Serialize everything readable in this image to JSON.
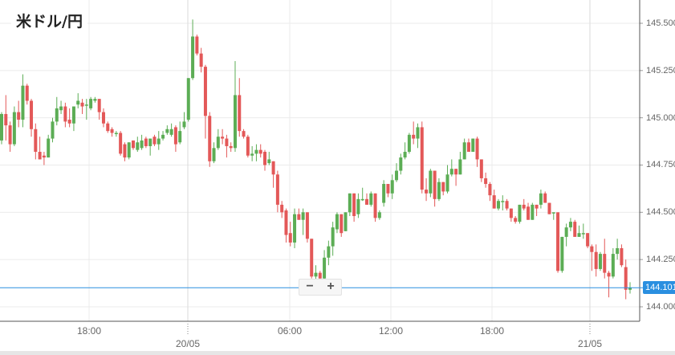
{
  "title": "米ドル/円",
  "colors": {
    "up": "#5cad55",
    "down": "#e35858",
    "price_line": "#2a8fe0",
    "grid": "#ebebeb"
  },
  "zoom": {
    "minus": "−",
    "plus": "+"
  },
  "chart_data": {
    "type": "candlestick",
    "title": "米ドル/円",
    "ylim": [
      143.92,
      145.62
    ],
    "grid": true,
    "y_ticks": [
      "145.500",
      "145.250",
      "145.000",
      "144.750",
      "144.500",
      "144.250",
      "144.000"
    ],
    "x_ticks": [
      {
        "label": "18:00",
        "kind": "time"
      },
      {
        "label": "20/05",
        "kind": "date"
      },
      {
        "label": "06:00",
        "kind": "time"
      },
      {
        "label": "12:00",
        "kind": "time"
      },
      {
        "label": "18:00",
        "kind": "time"
      },
      {
        "label": "21/05",
        "kind": "date"
      }
    ],
    "current_price": "144.101",
    "candles": [
      [
        144.88,
        145.03,
        144.86,
        145.02
      ],
      [
        145.02,
        145.12,
        144.88,
        144.96
      ],
      [
        144.96,
        144.98,
        144.82,
        144.86
      ],
      [
        144.86,
        145.06,
        144.85,
        145.03
      ],
      [
        145.03,
        145.09,
        144.95,
        144.99
      ],
      [
        144.99,
        145.23,
        144.95,
        145.17
      ],
      [
        145.17,
        145.18,
        145.07,
        145.09
      ],
      [
        145.09,
        145.1,
        144.9,
        144.94
      ],
      [
        144.94,
        144.97,
        144.78,
        144.82
      ],
      [
        144.82,
        144.9,
        144.78,
        144.78
      ],
      [
        144.8,
        144.82,
        144.75,
        144.79
      ],
      [
        144.79,
        144.91,
        144.79,
        144.89
      ],
      [
        144.89,
        145.0,
        144.87,
        144.98
      ],
      [
        144.98,
        145.11,
        144.96,
        145.05
      ],
      [
        145.04,
        145.09,
        145.02,
        145.06
      ],
      [
        145.06,
        145.08,
        144.95,
        144.98
      ],
      [
        144.99,
        145.05,
        144.95,
        144.97
      ],
      [
        144.97,
        145.06,
        144.93,
        145.06
      ],
      [
        145.07,
        145.13,
        145.05,
        145.09
      ],
      [
        145.08,
        145.1,
        145.02,
        145.06
      ],
      [
        145.07,
        145.1,
        144.99,
        145.07
      ],
      [
        145.05,
        145.11,
        145.04,
        145.1
      ],
      [
        145.09,
        145.11,
        145.08,
        145.1
      ],
      [
        145.1,
        145.1,
        144.99,
        145.03
      ],
      [
        145.03,
        145.05,
        144.95,
        144.97
      ],
      [
        144.97,
        144.98,
        144.92,
        144.93
      ],
      [
        144.94,
        144.95,
        144.9,
        144.92
      ],
      [
        144.92,
        144.93,
        144.9,
        144.92
      ],
      [
        144.92,
        144.93,
        144.8,
        144.81
      ],
      [
        144.86,
        144.87,
        144.77,
        144.79
      ],
      [
        144.79,
        144.87,
        144.78,
        144.87
      ],
      [
        144.88,
        144.88,
        144.83,
        144.84
      ],
      [
        144.83,
        144.9,
        144.82,
        144.87
      ],
      [
        144.84,
        144.91,
        144.83,
        144.88
      ],
      [
        144.89,
        144.9,
        144.84,
        144.85
      ],
      [
        144.85,
        144.89,
        144.8,
        144.89
      ],
      [
        144.9,
        144.91,
        144.85,
        144.86
      ],
      [
        144.86,
        144.93,
        144.83,
        144.89
      ],
      [
        144.89,
        144.93,
        144.88,
        144.91
      ],
      [
        144.92,
        144.96,
        144.91,
        144.94
      ],
      [
        144.91,
        144.97,
        144.9,
        144.94
      ],
      [
        144.95,
        144.96,
        144.82,
        144.86
      ],
      [
        144.87,
        144.98,
        144.86,
        144.93
      ],
      [
        144.95,
        145.03,
        144.94,
        144.98
      ],
      [
        144.99,
        145.21,
        144.98,
        145.21
      ],
      [
        145.21,
        145.52,
        145.2,
        145.43
      ],
      [
        145.43,
        145.44,
        145.33,
        145.34
      ],
      [
        145.34,
        145.37,
        145.24,
        145.27
      ],
      [
        145.27,
        145.28,
        144.89,
        145.01
      ],
      [
        145.01,
        145.03,
        144.74,
        144.77
      ],
      [
        144.77,
        144.87,
        144.76,
        144.84
      ],
      [
        144.84,
        144.94,
        144.83,
        144.9
      ],
      [
        144.9,
        144.94,
        144.86,
        144.89
      ],
      [
        144.89,
        144.91,
        144.79,
        144.85
      ],
      [
        144.85,
        144.87,
        144.82,
        144.84
      ],
      [
        144.84,
        145.3,
        144.82,
        145.12
      ],
      [
        145.12,
        145.21,
        144.9,
        144.93
      ],
      [
        144.93,
        144.94,
        144.89,
        144.9
      ],
      [
        144.9,
        144.91,
        144.79,
        144.8
      ],
      [
        144.8,
        144.85,
        144.77,
        144.81
      ],
      [
        144.81,
        144.86,
        144.77,
        144.83
      ],
      [
        144.83,
        144.86,
        144.79,
        144.81
      ],
      [
        144.82,
        144.83,
        144.72,
        144.75
      ],
      [
        144.76,
        144.82,
        144.75,
        144.78
      ],
      [
        144.77,
        144.77,
        144.63,
        144.7
      ],
      [
        144.7,
        144.72,
        144.5,
        144.54
      ],
      [
        144.54,
        144.56,
        144.47,
        144.5
      ],
      [
        144.51,
        144.52,
        144.34,
        144.38
      ],
      [
        144.39,
        144.45,
        144.32,
        144.34
      ],
      [
        144.34,
        144.52,
        144.31,
        144.49
      ],
      [
        144.49,
        144.52,
        144.46,
        144.46
      ],
      [
        144.46,
        144.52,
        144.38,
        144.5
      ],
      [
        144.5,
        144.5,
        144.34,
        144.36
      ],
      [
        144.36,
        144.36,
        144.15,
        144.16
      ],
      [
        144.16,
        144.22,
        144.14,
        144.18
      ],
      [
        144.18,
        144.19,
        144.12,
        144.15
      ],
      [
        144.15,
        144.3,
        144.13,
        144.26
      ],
      [
        144.26,
        144.35,
        144.22,
        144.32
      ],
      [
        144.32,
        144.45,
        144.27,
        144.42
      ],
      [
        144.41,
        144.5,
        144.39,
        144.49
      ],
      [
        144.49,
        144.49,
        144.37,
        144.39
      ],
      [
        144.4,
        144.5,
        144.4,
        144.5
      ],
      [
        144.5,
        144.6,
        144.48,
        144.6
      ],
      [
        144.6,
        144.6,
        144.45,
        144.48
      ],
      [
        144.49,
        144.6,
        144.47,
        144.57
      ],
      [
        144.57,
        144.63,
        144.56,
        144.57
      ],
      [
        144.57,
        144.6,
        144.54,
        144.54
      ],
      [
        144.54,
        144.61,
        144.53,
        144.6
      ],
      [
        144.6,
        144.6,
        144.45,
        144.47
      ],
      [
        144.47,
        144.51,
        144.46,
        144.5
      ],
      [
        144.55,
        144.67,
        144.53,
        144.65
      ],
      [
        144.65,
        144.65,
        144.58,
        144.6
      ],
      [
        144.6,
        144.7,
        144.57,
        144.67
      ],
      [
        144.67,
        144.76,
        144.66,
        144.72
      ],
      [
        144.72,
        144.81,
        144.7,
        144.79
      ],
      [
        144.79,
        144.87,
        144.78,
        144.82
      ],
      [
        144.82,
        144.92,
        144.81,
        144.91
      ],
      [
        144.91,
        144.98,
        144.86,
        144.89
      ],
      [
        144.89,
        144.97,
        144.84,
        144.95
      ],
      [
        144.95,
        144.98,
        144.6,
        144.62
      ],
      [
        144.62,
        144.68,
        144.56,
        144.6
      ],
      [
        144.6,
        144.73,
        144.58,
        144.72
      ],
      [
        144.72,
        144.72,
        144.53,
        144.57
      ],
      [
        144.57,
        144.68,
        144.56,
        144.66
      ],
      [
        144.66,
        144.66,
        144.59,
        144.61
      ],
      [
        144.61,
        144.75,
        144.6,
        144.7
      ],
      [
        144.7,
        144.78,
        144.69,
        144.73
      ],
      [
        144.73,
        144.73,
        144.64,
        144.7
      ],
      [
        144.7,
        144.82,
        144.7,
        144.78
      ],
      [
        144.78,
        144.89,
        144.78,
        144.87
      ],
      [
        144.87,
        144.89,
        144.82,
        144.82
      ],
      [
        144.82,
        144.89,
        144.82,
        144.89
      ],
      [
        144.89,
        144.9,
        144.74,
        144.78
      ],
      [
        144.78,
        144.78,
        144.66,
        144.68
      ],
      [
        144.68,
        144.71,
        144.63,
        144.65
      ],
      [
        144.65,
        144.66,
        144.56,
        144.59
      ],
      [
        144.59,
        144.62,
        144.52,
        144.52
      ],
      [
        144.52,
        144.57,
        144.51,
        144.56
      ],
      [
        144.56,
        144.59,
        144.51,
        144.56
      ],
      [
        144.56,
        144.57,
        144.51,
        144.52
      ],
      [
        144.52,
        144.52,
        144.45,
        144.47
      ],
      [
        144.47,
        144.48,
        144.44,
        144.45
      ],
      [
        144.45,
        144.54,
        144.44,
        144.54
      ],
      [
        144.54,
        144.57,
        144.51,
        144.52
      ],
      [
        144.53,
        144.55,
        144.46,
        144.46
      ],
      [
        144.46,
        144.55,
        144.46,
        144.54
      ],
      [
        144.54,
        144.54,
        144.48,
        144.52
      ],
      [
        144.54,
        144.62,
        144.52,
        144.6
      ],
      [
        144.6,
        144.61,
        144.55,
        144.55
      ],
      [
        144.55,
        144.55,
        144.49,
        144.49
      ],
      [
        144.5,
        144.5,
        144.46,
        144.5
      ],
      [
        144.5,
        144.5,
        144.18,
        144.19
      ],
      [
        144.19,
        144.37,
        144.18,
        144.37
      ],
      [
        144.37,
        144.44,
        144.32,
        144.42
      ],
      [
        144.42,
        144.47,
        144.4,
        144.45
      ],
      [
        144.45,
        144.46,
        144.37,
        144.37
      ],
      [
        144.37,
        144.43,
        144.37,
        144.39
      ],
      [
        144.39,
        144.44,
        144.36,
        144.39
      ],
      [
        144.39,
        144.39,
        144.31,
        144.32
      ],
      [
        144.32,
        144.33,
        144.19,
        144.29
      ],
      [
        144.29,
        144.33,
        144.16,
        144.2
      ],
      [
        144.2,
        144.29,
        144.19,
        144.28
      ],
      [
        144.28,
        144.36,
        144.15,
        144.18
      ],
      [
        144.18,
        144.19,
        144.05,
        144.16
      ],
      [
        144.16,
        144.31,
        144.15,
        144.28
      ],
      [
        144.28,
        144.36,
        144.25,
        144.31
      ],
      [
        144.31,
        144.33,
        144.21,
        144.22
      ],
      [
        144.21,
        144.25,
        144.04,
        144.09
      ],
      [
        144.09,
        144.13,
        144.07,
        144.1
      ]
    ]
  }
}
